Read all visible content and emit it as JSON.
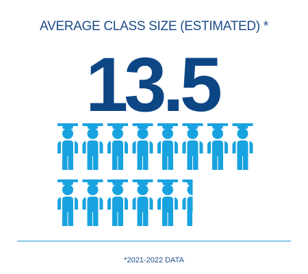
{
  "chart_data": {
    "type": "pictograph",
    "title": "AVERAGE CLASS SIZE (ESTIMATED) *",
    "value": 13.5,
    "color": "#19a2e0",
    "footnote": "*2021-2022 DATA"
  }
}
